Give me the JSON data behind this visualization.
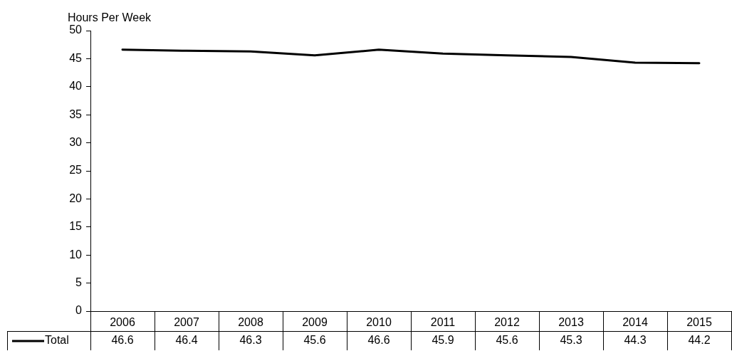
{
  "chart_data": {
    "type": "line",
    "ylabel": "Hours Per Week",
    "categories": [
      "2006",
      "2007",
      "2008",
      "2009",
      "2010",
      "2011",
      "2012",
      "2013",
      "2014",
      "2015"
    ],
    "series": [
      {
        "name": "Total",
        "color": "#000000",
        "values": [
          46.6,
          46.4,
          46.3,
          45.6,
          46.6,
          45.9,
          45.6,
          45.3,
          44.3,
          44.2
        ]
      }
    ],
    "ylim": [
      0,
      50
    ],
    "yticks": [
      0,
      5,
      10,
      15,
      20,
      25,
      30,
      35,
      40,
      45,
      50
    ],
    "grid": false,
    "legend": "bottom",
    "marker": "none",
    "line_style": "solid",
    "data_labels": true
  }
}
